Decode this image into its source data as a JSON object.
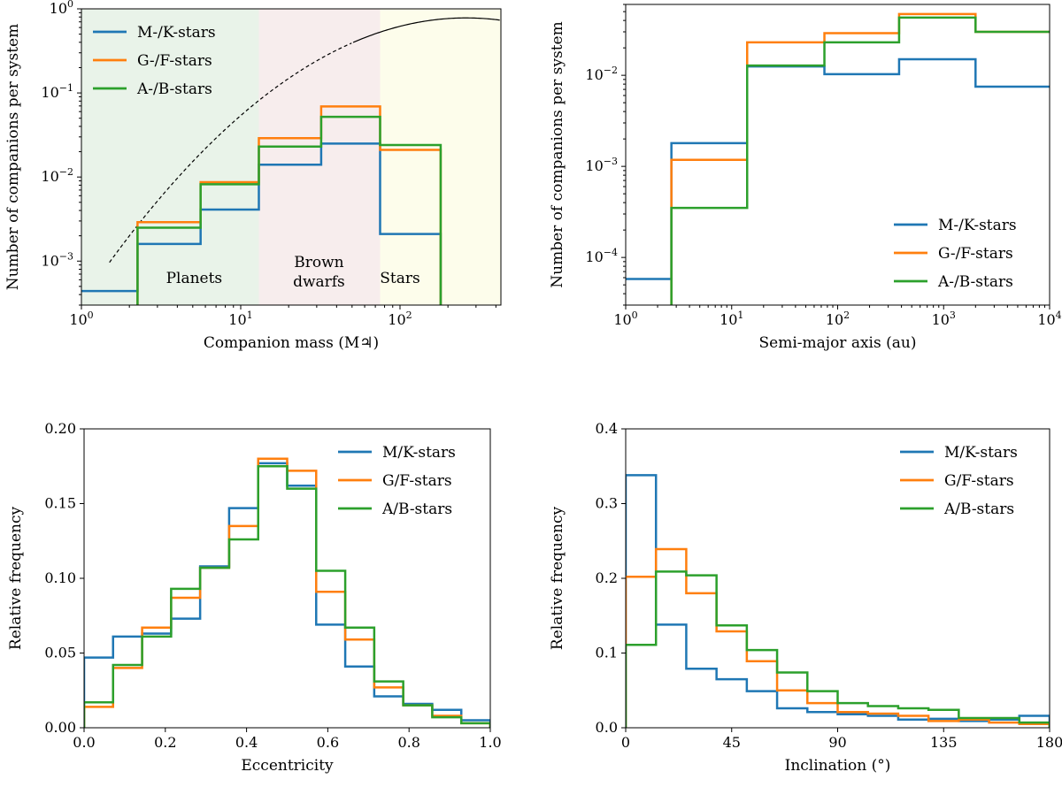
{
  "chart_data": [
    {
      "id": "mass",
      "type": "step",
      "xscale": "log",
      "yscale": "log",
      "xlim": [
        1,
        430
      ],
      "ylim": [
        0.0003,
        1
      ],
      "xlabel": "Companion mass (M♃)",
      "ylabel": "Number of companions per system",
      "xticks": [
        {
          "v": 1,
          "base": "10",
          "exp": "0"
        },
        {
          "v": 10,
          "base": "10",
          "exp": "1"
        },
        {
          "v": 100,
          "base": "10",
          "exp": "2"
        }
      ],
      "yticks": [
        {
          "v": 0.001,
          "base": "10",
          "exp": "−3"
        },
        {
          "v": 0.01,
          "base": "10",
          "exp": "−2"
        },
        {
          "v": 0.1,
          "base": "10",
          "exp": "−1"
        },
        {
          "v": 1,
          "base": "10",
          "exp": "0"
        }
      ],
      "regions": [
        {
          "name": "Planets",
          "from": 1,
          "to": 13,
          "color": "#e9f3e9",
          "label_lines": [
            "Planets"
          ],
          "label_x": 5.1,
          "label_y": 0.00055
        },
        {
          "name": "Brown dwarfs",
          "from": 13,
          "to": 75,
          "color": "#f7eded",
          "label_lines": [
            "Brown",
            "dwarfs"
          ],
          "label_x": 31,
          "label_y": 0.00065
        },
        {
          "name": "Stars",
          "from": 75,
          "to": 430,
          "color": "#fdfdeb",
          "label_lines": [
            "Stars"
          ],
          "label_x": 100,
          "label_y": 0.00055
        }
      ],
      "curve": {
        "x_dashed_end": 50,
        "peak_x": 260,
        "peak_y": 0.78,
        "ln_width": 1.25
      },
      "legend_position": "top-left",
      "edges": [
        1,
        2.25,
        5.6,
        13,
        32,
        75,
        180
      ],
      "series": [
        {
          "name": "M-/K-stars",
          "color": "#1f77b4",
          "values": [
            0.00044,
            0.0016,
            0.0041,
            0.014,
            0.025,
            0.0021
          ]
        },
        {
          "name": "G-/F-stars",
          "color": "#ff7f0e",
          "values": [
            1e-05,
            0.0029,
            0.0087,
            0.029,
            0.069,
            0.021
          ]
        },
        {
          "name": "A-/B-stars",
          "color": "#2ca02c",
          "values": [
            1e-05,
            0.0025,
            0.0082,
            0.023,
            0.052,
            0.024
          ]
        }
      ]
    },
    {
      "id": "sma",
      "type": "step",
      "xscale": "log",
      "yscale": "log",
      "xlim": [
        1,
        10000
      ],
      "ylim": [
        3e-05,
        0.06
      ],
      "xlabel": "Semi-major axis (au)",
      "ylabel": "Number of companions per system",
      "xticks": [
        {
          "v": 1,
          "base": "10",
          "exp": "0"
        },
        {
          "v": 10,
          "base": "10",
          "exp": "1"
        },
        {
          "v": 100,
          "base": "10",
          "exp": "2"
        },
        {
          "v": 1000,
          "base": "10",
          "exp": "3"
        },
        {
          "v": 10000,
          "base": "10",
          "exp": "4"
        }
      ],
      "yticks": [
        {
          "v": 0.0001,
          "base": "10",
          "exp": "−4"
        },
        {
          "v": 0.001,
          "base": "10",
          "exp": "−3"
        },
        {
          "v": 0.01,
          "base": "10",
          "exp": "−2"
        }
      ],
      "legend_position": "lower-right",
      "edges": [
        1,
        2.7,
        14,
        75,
        380,
        2000,
        10000
      ],
      "series": [
        {
          "name": "M-/K-stars",
          "color": "#1f77b4",
          "values": [
            5.8e-05,
            0.0018,
            0.0125,
            0.0103,
            0.015,
            0.0075
          ]
        },
        {
          "name": "G-/F-stars",
          "color": "#ff7f0e",
          "values": [
            1e-06,
            0.00118,
            0.023,
            0.029,
            0.047,
            0.03
          ]
        },
        {
          "name": "A-/B-stars",
          "color": "#2ca02c",
          "values": [
            1e-06,
            0.00035,
            0.0128,
            0.023,
            0.043,
            0.03
          ]
        }
      ]
    },
    {
      "id": "ecc",
      "type": "step",
      "xscale": "linear",
      "yscale": "linear",
      "xlim": [
        0,
        1
      ],
      "ylim": [
        0,
        0.2
      ],
      "xlabel": "Eccentricity",
      "ylabel": "Relative frequency",
      "xticks": [
        {
          "v": 0,
          "label": "0.0"
        },
        {
          "v": 0.2,
          "label": "0.2"
        },
        {
          "v": 0.4,
          "label": "0.4"
        },
        {
          "v": 0.6,
          "label": "0.6"
        },
        {
          "v": 0.8,
          "label": "0.8"
        },
        {
          "v": 1,
          "label": "1.0"
        }
      ],
      "yticks": [
        {
          "v": 0,
          "label": "0.00"
        },
        {
          "v": 0.05,
          "label": "0.05"
        },
        {
          "v": 0.1,
          "label": "0.10"
        },
        {
          "v": 0.15,
          "label": "0.15"
        },
        {
          "v": 0.2,
          "label": "0.20"
        }
      ],
      "legend_position": "top-right",
      "edges": [
        0,
        0.0714,
        0.1429,
        0.2143,
        0.2857,
        0.3571,
        0.4286,
        0.5,
        0.5714,
        0.6429,
        0.7143,
        0.7857,
        0.8571,
        0.9286,
        1
      ],
      "series": [
        {
          "name": "M/K-stars",
          "color": "#1f77b4",
          "values": [
            0.047,
            0.061,
            0.063,
            0.073,
            0.108,
            0.147,
            0.177,
            0.162,
            0.069,
            0.041,
            0.021,
            0.016,
            0.012,
            0.005
          ]
        },
        {
          "name": "G/F-stars",
          "color": "#ff7f0e",
          "values": [
            0.014,
            0.04,
            0.067,
            0.087,
            0.107,
            0.135,
            0.18,
            0.172,
            0.091,
            0.059,
            0.027,
            0.015,
            0.008,
            0.003
          ]
        },
        {
          "name": "A/B-stars",
          "color": "#2ca02c",
          "values": [
            0.017,
            0.042,
            0.061,
            0.093,
            0.107,
            0.126,
            0.175,
            0.16,
            0.105,
            0.067,
            0.031,
            0.015,
            0.007,
            0.003
          ]
        }
      ]
    },
    {
      "id": "inc",
      "type": "step",
      "xscale": "linear",
      "yscale": "linear",
      "xlim": [
        0,
        180
      ],
      "ylim": [
        0,
        0.4
      ],
      "xlabel": "Inclination (°)",
      "ylabel": "Relative frequency",
      "xticks": [
        {
          "v": 0,
          "label": "0"
        },
        {
          "v": 45,
          "label": "45"
        },
        {
          "v": 90,
          "label": "90"
        },
        {
          "v": 135,
          "label": "135"
        },
        {
          "v": 180,
          "label": "180"
        }
      ],
      "yticks": [
        {
          "v": 0,
          "label": "0.0"
        },
        {
          "v": 0.1,
          "label": "0.1"
        },
        {
          "v": 0.2,
          "label": "0.2"
        },
        {
          "v": 0.3,
          "label": "0.3"
        },
        {
          "v": 0.4,
          "label": "0.4"
        }
      ],
      "legend_position": "top-right",
      "edges": [
        0,
        12.86,
        25.71,
        38.57,
        51.43,
        64.29,
        77.14,
        90,
        102.86,
        115.71,
        128.57,
        141.43,
        154.29,
        167.14,
        180
      ],
      "series": [
        {
          "name": "M/K-stars",
          "color": "#1f77b4",
          "values": [
            0.338,
            0.138,
            0.079,
            0.065,
            0.049,
            0.026,
            0.021,
            0.018,
            0.016,
            0.011,
            0.012,
            0.009,
            0.011,
            0.016
          ]
        },
        {
          "name": "G/F-stars",
          "color": "#ff7f0e",
          "values": [
            0.202,
            0.239,
            0.18,
            0.129,
            0.089,
            0.05,
            0.033,
            0.021,
            0.019,
            0.016,
            0.009,
            0.011,
            0.007,
            0.005
          ]
        },
        {
          "name": "A/B-stars",
          "color": "#2ca02c",
          "values": [
            0.111,
            0.209,
            0.204,
            0.137,
            0.104,
            0.074,
            0.049,
            0.033,
            0.029,
            0.026,
            0.024,
            0.013,
            0.013,
            0.007
          ]
        }
      ]
    }
  ]
}
